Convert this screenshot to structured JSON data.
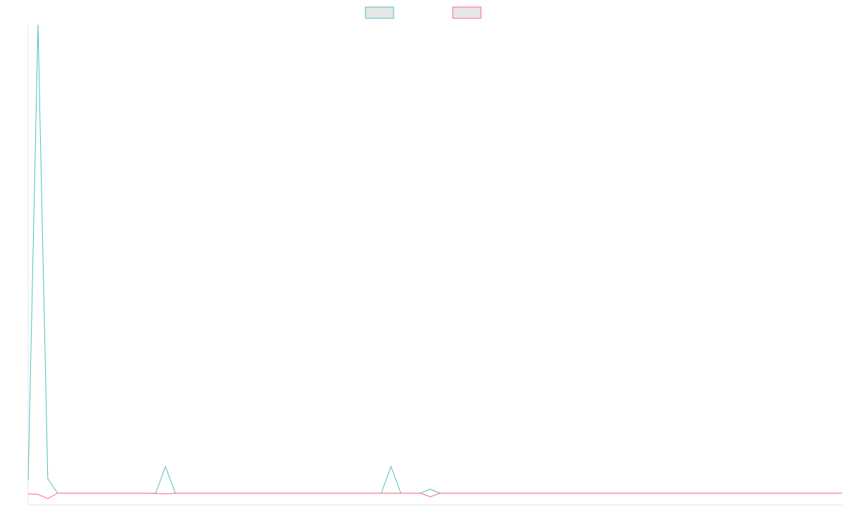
{
  "chart_data": {
    "type": "line",
    "title": "",
    "xlabel": "",
    "ylabel": "",
    "legend_position": "top-center",
    "grid": false,
    "x": [
      0,
      1,
      2,
      3,
      4,
      5,
      6,
      7,
      8,
      9,
      10,
      11,
      12,
      13,
      14,
      15,
      16,
      17,
      18,
      19,
      20,
      21,
      22,
      23,
      24,
      25,
      26,
      27,
      28,
      29,
      30,
      31,
      32,
      33,
      34,
      35,
      36,
      37,
      38,
      39,
      40,
      41,
      42,
      43,
      44,
      45,
      46,
      47,
      48,
      49,
      50,
      51,
      52,
      53,
      54,
      55,
      56,
      57,
      58,
      59,
      60,
      61,
      62,
      63,
      64,
      65,
      66,
      67,
      68,
      69,
      70,
      71,
      72,
      73,
      74,
      75,
      76,
      77,
      78,
      79,
      80,
      81,
      82,
      83
    ],
    "xlim": [
      0,
      83
    ],
    "ylim": [
      -2,
      155
    ],
    "series": [
      {
        "name": "",
        "color": "#4bc0c0",
        "fill": "#e6e6e6",
        "values": [
          6,
          155,
          6.5,
          1.8,
          1.8,
          1.8,
          1.8,
          1.8,
          1.8,
          1.8,
          1.8,
          1.8,
          1.8,
          1.8,
          10.5,
          1.8,
          1.8,
          1.8,
          1.8,
          1.8,
          1.8,
          1.8,
          1.8,
          1.8,
          1.8,
          1.8,
          1.8,
          1.8,
          1.8,
          1.8,
          1.8,
          1.8,
          1.8,
          1.8,
          1.8,
          1.8,
          1.8,
          10.5,
          1.8,
          1.8,
          1.8,
          3.1,
          1.8,
          1.8,
          1.8,
          1.8,
          1.8,
          1.8,
          1.8,
          1.8,
          1.8,
          1.8,
          1.8,
          1.8,
          1.8,
          1.8,
          1.8,
          1.8,
          1.8,
          1.8,
          1.8,
          1.8,
          1.8,
          1.8,
          1.8,
          1.8,
          1.8,
          1.8,
          1.8,
          1.8,
          1.8,
          1.8,
          1.8,
          1.8,
          1.8,
          1.8,
          1.8,
          1.8,
          1.8,
          1.8,
          1.8,
          1.8,
          1.8,
          1.8
        ]
      },
      {
        "name": "",
        "color": "#ff6384",
        "fill": "#e6e6e6",
        "values": [
          1.6,
          1.4,
          0,
          1.8,
          1.8,
          1.8,
          1.8,
          1.8,
          1.8,
          1.8,
          1.8,
          1.8,
          1.8,
          1.7,
          1.5,
          1.8,
          1.8,
          1.8,
          1.8,
          1.8,
          1.8,
          1.8,
          1.8,
          1.8,
          1.8,
          1.8,
          1.8,
          1.8,
          1.8,
          1.8,
          1.8,
          1.8,
          1.8,
          1.8,
          1.8,
          1.8,
          1.8,
          1.8,
          1.8,
          1.8,
          1.8,
          0.6,
          1.8,
          1.8,
          1.8,
          1.8,
          1.8,
          1.8,
          1.8,
          1.8,
          1.8,
          1.8,
          1.8,
          1.8,
          1.8,
          1.8,
          1.8,
          1.8,
          1.8,
          1.8,
          1.8,
          1.8,
          1.8,
          1.8,
          1.8,
          1.8,
          1.8,
          1.8,
          1.8,
          1.8,
          1.8,
          1.8,
          1.8,
          1.8,
          1.8,
          1.8,
          1.8,
          1.8,
          1.8,
          1.8,
          1.8,
          1.8,
          1.8,
          1.8
        ]
      }
    ]
  }
}
